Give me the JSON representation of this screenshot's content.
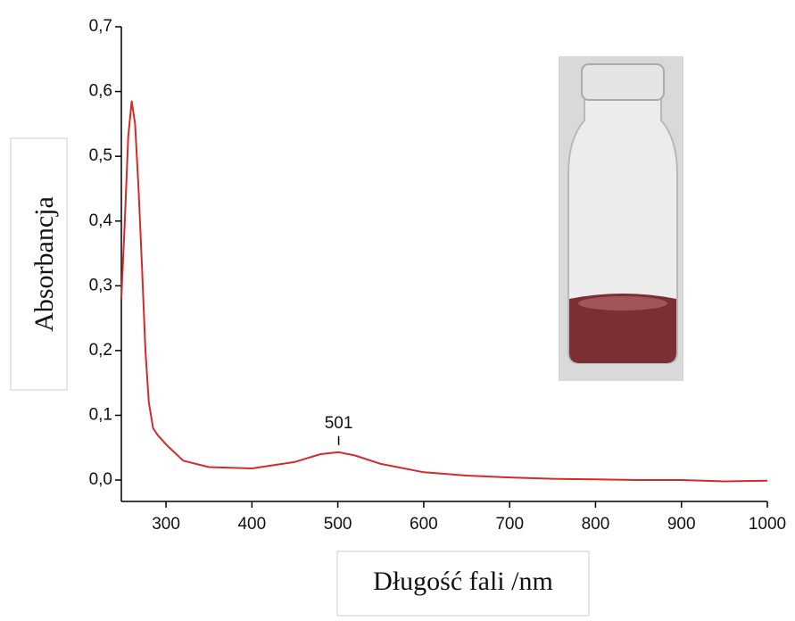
{
  "chart_data": {
    "type": "line",
    "xlabel": "Długość fali /nm",
    "ylabel": "Absorbancja",
    "x": [
      248,
      252,
      256,
      260,
      264,
      268,
      272,
      276,
      280,
      285,
      290,
      300,
      320,
      350,
      400,
      450,
      480,
      501,
      520,
      550,
      600,
      650,
      700,
      750,
      800,
      850,
      900,
      950,
      1000
    ],
    "series": [
      {
        "name": "Absorbancja",
        "color": "#d42a2a",
        "values": [
          0.28,
          0.4,
          0.53,
          0.585,
          0.55,
          0.45,
          0.33,
          0.2,
          0.12,
          0.08,
          0.07,
          0.055,
          0.03,
          0.02,
          0.018,
          0.028,
          0.04,
          0.043,
          0.038,
          0.025,
          0.012,
          0.007,
          0.004,
          0.002,
          0.001,
          0.0,
          0.0,
          -0.002,
          -0.001
        ]
      }
    ],
    "annotations": [
      {
        "label": "501",
        "x": 501,
        "y": 0.043
      }
    ],
    "xlim": [
      248,
      1000
    ],
    "xticks": [
      300,
      400,
      500,
      600,
      700,
      800,
      900,
      1000
    ],
    "ylim": [
      -0.033,
      0.7
    ],
    "yticks": [
      {
        "value": 0,
        "label": "0,0"
      },
      {
        "value": 0.1,
        "label": "0,1"
      },
      {
        "value": 0.2,
        "label": "0,2"
      },
      {
        "value": 0.3,
        "label": "0,3"
      },
      {
        "value": 0.4,
        "label": "0,4"
      },
      {
        "value": 0.5,
        "label": "0,5"
      },
      {
        "value": 0.6,
        "label": "0,6"
      },
      {
        "value": 0.7,
        "label": "0,7"
      }
    ],
    "grid": false
  }
}
